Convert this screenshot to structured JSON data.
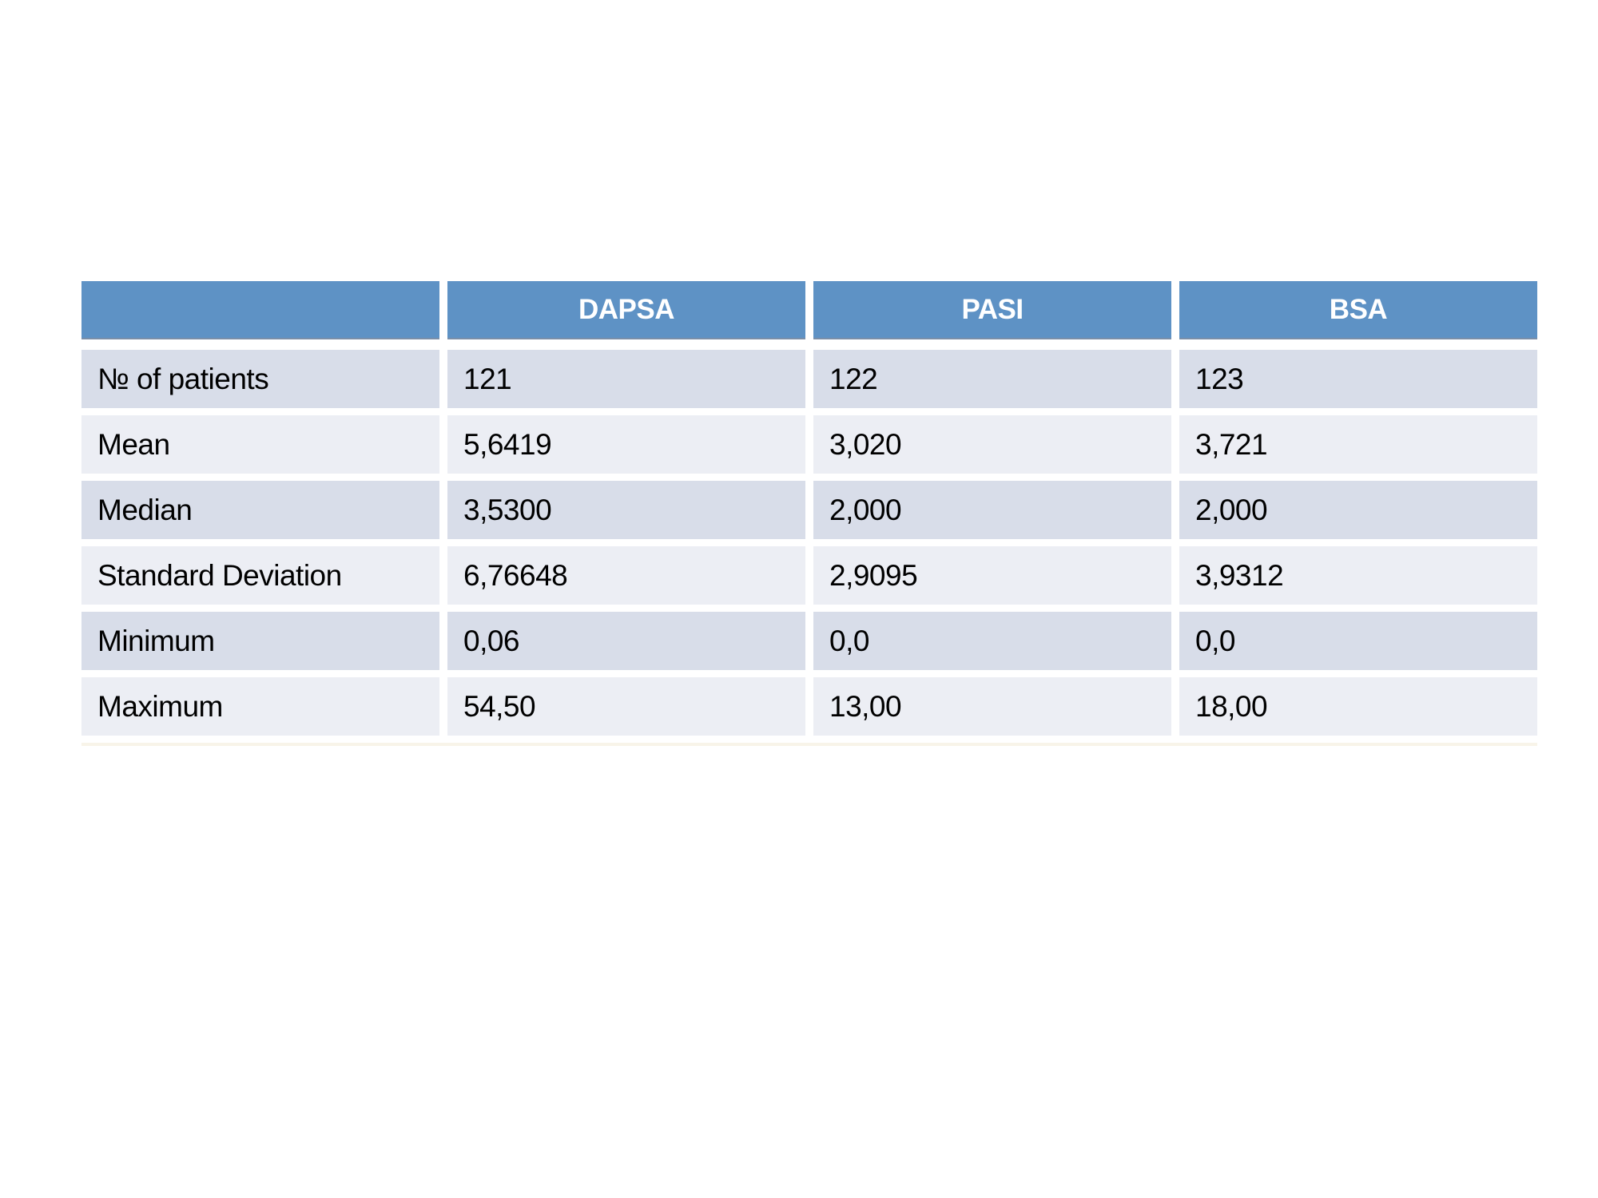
{
  "chart_data": {
    "type": "table",
    "header": [
      "",
      "DAPSA",
      "PASI",
      "BSA"
    ],
    "row_labels": [
      "№ of patients",
      "Mean",
      "Median",
      "Standard Deviation",
      "Minimum",
      "Maximum"
    ],
    "rows": [
      {
        "label": "№ of patients",
        "values": [
          "121",
          "122",
          "123"
        ]
      },
      {
        "label": "Mean",
        "values": [
          "5,6419",
          "3,020",
          "3,721"
        ]
      },
      {
        "label": "Median",
        "values": [
          "3,5300",
          "2,000",
          "2,000"
        ]
      },
      {
        "label": "Standard Deviation",
        "values": [
          "6,76648",
          "2,9095",
          "3,9312"
        ]
      },
      {
        "label": "Minimum",
        "values": [
          "0,06",
          "0,0",
          "0,0"
        ]
      },
      {
        "label": "Maximum",
        "values": [
          "54,50",
          "13,00",
          "18,00"
        ]
      }
    ],
    "layout": {
      "banded_rows": true,
      "legend_position": "none",
      "grid": false
    }
  },
  "colors": {
    "header_bg": "#5E92C5",
    "header_text": "#FFFFFF",
    "header_border_bottom": "#7A8FA9",
    "band_dark": "#D8DDE9",
    "band_light": "#ECEEF4",
    "body_text": "#000000",
    "page_bg": "#FFFFFF",
    "bottom_shadow": "#F8F4E9"
  }
}
